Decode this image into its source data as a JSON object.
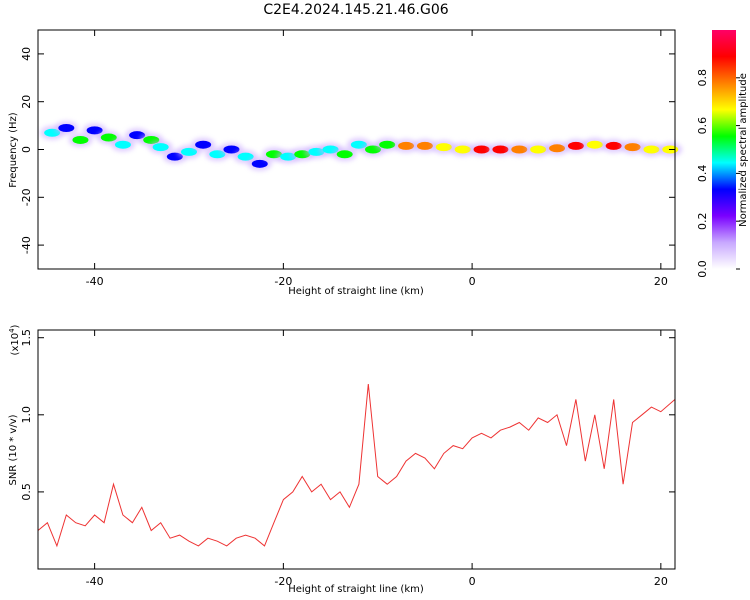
{
  "title": "C2E4.2024.145.21.46.G06",
  "chart_data": [
    {
      "type": "heatmap",
      "xlabel": "Height of straight line (km)",
      "ylabel": "Frequency (Hz)",
      "xlim": [
        -46,
        21.5
      ],
      "ylim": [
        -50,
        50
      ],
      "xticks": [
        -40,
        -20,
        0,
        20
      ],
      "xtick_labels": [
        "-40",
        "-20",
        "0",
        "20"
      ],
      "yticks": [
        -40,
        -20,
        0,
        20,
        40
      ],
      "ytick_labels": [
        "-40",
        "-20",
        "0",
        "20",
        "40"
      ],
      "colorbar": {
        "label": "Normalized spectral amplitude",
        "range": [
          0,
          1
        ],
        "ticks": [
          0.0,
          0.2,
          0.4,
          0.6,
          0.8
        ],
        "tick_labels": [
          "0.0",
          "0.2",
          "0.4",
          "0.6",
          "0.8"
        ],
        "colors": [
          "#ffffff",
          "#c8a8ff",
          "#7a00ff",
          "#0000ff",
          "#00ffff",
          "#00ff00",
          "#ffff00",
          "#ff8000",
          "#ff0000",
          "#ff0066"
        ]
      },
      "blobs": [
        {
          "x": -44.5,
          "y": 7,
          "v": 0.45
        },
        {
          "x": -43,
          "y": 9,
          "v": 0.35
        },
        {
          "x": -41.5,
          "y": 4,
          "v": 0.5
        },
        {
          "x": -40,
          "y": 8,
          "v": 0.35
        },
        {
          "x": -38.5,
          "y": 5,
          "v": 0.55
        },
        {
          "x": -37,
          "y": 2,
          "v": 0.4
        },
        {
          "x": -35.5,
          "y": 6,
          "v": 0.35
        },
        {
          "x": -34,
          "y": 4,
          "v": 0.5
        },
        {
          "x": -33,
          "y": 1,
          "v": 0.4
        },
        {
          "x": -31.5,
          "y": -3,
          "v": 0.3
        },
        {
          "x": -30,
          "y": -1,
          "v": 0.45
        },
        {
          "x": -28.5,
          "y": 2,
          "v": 0.35
        },
        {
          "x": -27,
          "y": -2,
          "v": 0.4
        },
        {
          "x": -25.5,
          "y": 0,
          "v": 0.35
        },
        {
          "x": -24,
          "y": -3,
          "v": 0.45
        },
        {
          "x": -22.5,
          "y": -6,
          "v": 0.3
        },
        {
          "x": -21,
          "y": -2,
          "v": 0.5
        },
        {
          "x": -19.5,
          "y": -3,
          "v": 0.45
        },
        {
          "x": -18,
          "y": -2,
          "v": 0.5
        },
        {
          "x": -16.5,
          "y": -1,
          "v": 0.45
        },
        {
          "x": -15,
          "y": 0,
          "v": 0.4
        },
        {
          "x": -13.5,
          "y": -2,
          "v": 0.5
        },
        {
          "x": -12,
          "y": 2,
          "v": 0.45
        },
        {
          "x": -10.5,
          "y": 0,
          "v": 0.55
        },
        {
          "x": -9,
          "y": 2,
          "v": 0.5
        },
        {
          "x": -7,
          "y": 1.5,
          "v": 0.75
        },
        {
          "x": -5,
          "y": 1.5,
          "v": 0.8
        },
        {
          "x": -3,
          "y": 1,
          "v": 0.7
        },
        {
          "x": -1,
          "y": 0,
          "v": 0.65
        },
        {
          "x": 1,
          "y": 0,
          "v": 0.85
        },
        {
          "x": 3,
          "y": 0,
          "v": 0.85
        },
        {
          "x": 5,
          "y": 0,
          "v": 0.8
        },
        {
          "x": 7,
          "y": 0,
          "v": 0.7
        },
        {
          "x": 9,
          "y": 0.5,
          "v": 0.75
        },
        {
          "x": 11,
          "y": 1.5,
          "v": 0.85
        },
        {
          "x": 13,
          "y": 2,
          "v": 0.7
        },
        {
          "x": 15,
          "y": 1.5,
          "v": 0.85
        },
        {
          "x": 17,
          "y": 1,
          "v": 0.75
        },
        {
          "x": 19,
          "y": 0,
          "v": 0.7
        },
        {
          "x": 21,
          "y": 0,
          "v": 0.65
        }
      ]
    },
    {
      "type": "line",
      "xlabel": "Height of straight line (km)",
      "ylabel": "SNR (10 * v/v)",
      "y_multiplier": "(x10",
      "y_multiplier_exp": "4",
      "xlim": [
        -46,
        21.5
      ],
      "ylim": [
        0,
        1.55
      ],
      "xticks": [
        -40,
        -20,
        0,
        20
      ],
      "xtick_labels": [
        "-40",
        "-20",
        "0",
        "20"
      ],
      "yticks": [
        0.5,
        1.0,
        1.5
      ],
      "ytick_labels": [
        "0.5",
        "1.0",
        "1.5"
      ],
      "line_color": "#ee3333",
      "series": [
        {
          "x": [
            -46,
            -45,
            -44,
            -43,
            -42,
            -41,
            -40,
            -39,
            -38,
            -37,
            -36,
            -35,
            -34,
            -33,
            -32,
            -31,
            -30,
            -29,
            -28,
            -27,
            -26,
            -25,
            -24,
            -23,
            -22,
            -21,
            -20,
            -19,
            -18,
            -17,
            -16,
            -15,
            -14,
            -13,
            -12,
            -11,
            -10,
            -9,
            -8,
            -7,
            -6,
            -5,
            -4,
            -3,
            -2,
            -1,
            0,
            1,
            2,
            3,
            4,
            5,
            6,
            7,
            8,
            9,
            10,
            11,
            12,
            13,
            14,
            15,
            16,
            17,
            18,
            19,
            20,
            21.5
          ],
          "y": [
            0.25,
            0.3,
            0.15,
            0.35,
            0.3,
            0.28,
            0.35,
            0.3,
            0.55,
            0.35,
            0.3,
            0.4,
            0.25,
            0.3,
            0.2,
            0.22,
            0.18,
            0.15,
            0.2,
            0.18,
            0.15,
            0.2,
            0.22,
            0.2,
            0.15,
            0.3,
            0.45,
            0.5,
            0.6,
            0.5,
            0.55,
            0.45,
            0.5,
            0.4,
            0.55,
            1.2,
            0.6,
            0.55,
            0.6,
            0.7,
            0.75,
            0.72,
            0.65,
            0.75,
            0.8,
            0.78,
            0.85,
            0.88,
            0.85,
            0.9,
            0.92,
            0.95,
            0.9,
            0.98,
            0.95,
            1.0,
            0.8,
            1.1,
            0.7,
            1.0,
            0.65,
            1.1,
            0.55,
            0.95,
            1.0,
            1.05,
            1.02,
            1.1
          ]
        }
      ]
    }
  ]
}
